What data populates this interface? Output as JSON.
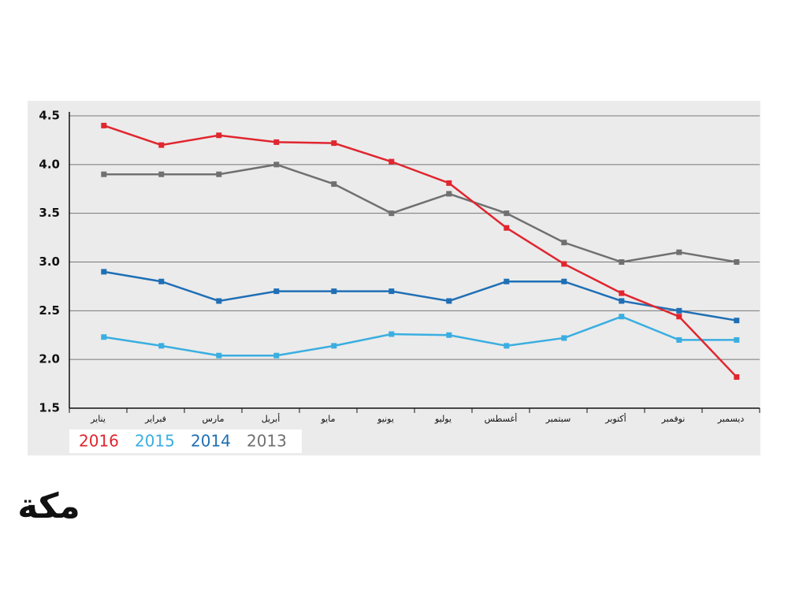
{
  "chart_data": {
    "type": "line",
    "categories": [
      "يناير",
      "فبراير",
      "مارس",
      "أبريل",
      "مايو",
      "يونيو",
      "يوليو",
      "أغسطس",
      "سبتمبر",
      "أكتوبر",
      "نوفمبر",
      "ديسمبر"
    ],
    "series": [
      {
        "name": "2016",
        "color": "#e0262f",
        "values": [
          4.4,
          4.2,
          4.3,
          4.23,
          4.22,
          4.03,
          3.81,
          3.35,
          2.98,
          2.68,
          2.44,
          1.82
        ]
      },
      {
        "name": "2015",
        "color": "#3aaee0",
        "values": [
          2.23,
          2.14,
          2.04,
          2.04,
          2.14,
          2.26,
          2.25,
          2.14,
          2.22,
          2.44,
          2.2,
          2.2
        ]
      },
      {
        "name": "2014",
        "color": "#1f6fb5",
        "values": [
          2.9,
          2.8,
          2.6,
          2.7,
          2.7,
          2.7,
          2.6,
          2.8,
          2.8,
          2.6,
          2.5,
          2.4
        ]
      },
      {
        "name": "2013",
        "color": "#707070",
        "values": [
          3.9,
          3.9,
          3.9,
          4.0,
          3.8,
          3.5,
          3.7,
          3.5,
          3.2,
          3.0,
          3.1,
          3.0
        ]
      }
    ],
    "ylim": [
      1.5,
      4.5
    ],
    "yticks": [
      1.5,
      {
        "value": 2,
        "label": "2.0"
      },
      2.5,
      {
        "value": 3,
        "label": "3.0"
      },
      3.5,
      {
        "value": 4,
        "label": "4.0"
      },
      4.5
    ],
    "grid": true,
    "legend": "bottom-left",
    "logo": "مكة"
  }
}
